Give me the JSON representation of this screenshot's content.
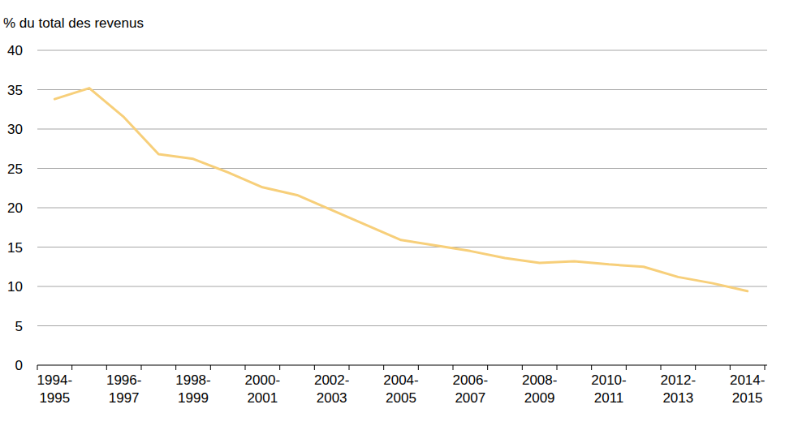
{
  "chart_data": {
    "type": "line",
    "y_label": "% du total des revenus",
    "categories": [
      "1994-1995",
      null,
      "1996-1997",
      null,
      "1998-1999",
      null,
      "2000-2001",
      null,
      "2002-2003",
      null,
      "2004-2005",
      null,
      "2006-2007",
      null,
      "2008-2009",
      null,
      "2010-2011",
      null,
      "2012-2013",
      null,
      "2014-2015"
    ],
    "values": [
      33.8,
      35.2,
      31.5,
      26.8,
      26.2,
      24.5,
      22.6,
      21.6,
      19.7,
      17.8,
      15.9,
      15.2,
      14.5,
      13.6,
      13.0,
      13.2,
      12.8,
      12.5,
      11.2,
      10.4,
      9.4
    ],
    "color": "#f7cf7a",
    "ylim": [
      0,
      40
    ],
    "yticks": [
      0,
      5,
      10,
      15,
      20,
      25,
      30,
      35,
      40
    ],
    "grid": true
  }
}
